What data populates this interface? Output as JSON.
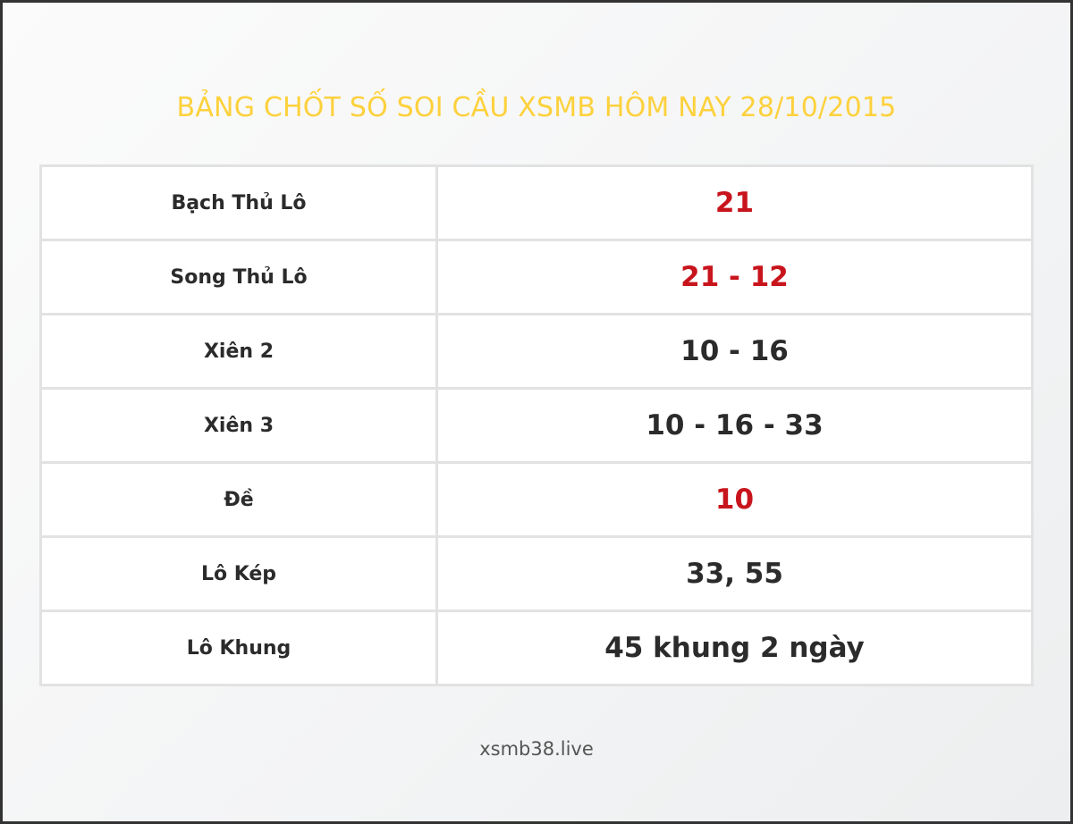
{
  "title": "BẢNG CHỐT SỐ SOI CẦU XSMB HÔM NAY 28/10/2015",
  "rows": [
    {
      "label": "Bạch Thủ Lô",
      "value": "21",
      "highlight": true
    },
    {
      "label": "Song Thủ Lô",
      "value": "21 - 12",
      "highlight": true
    },
    {
      "label": "Xiên 2",
      "value": "10 - 16",
      "highlight": false
    },
    {
      "label": "Xiên 3",
      "value": "10 - 16 - 33",
      "highlight": false
    },
    {
      "label": "Đề",
      "value": "10",
      "highlight": true
    },
    {
      "label": "Lô Kép",
      "value": "33, 55",
      "highlight": false
    },
    {
      "label": "Lô Khung",
      "value": "45 khung 2 ngày",
      "highlight": false
    }
  ],
  "footer": "xsmb38.live",
  "colors": {
    "title": "#fdd13c",
    "highlight": "#c8141c",
    "text": "#2b2b2b"
  }
}
